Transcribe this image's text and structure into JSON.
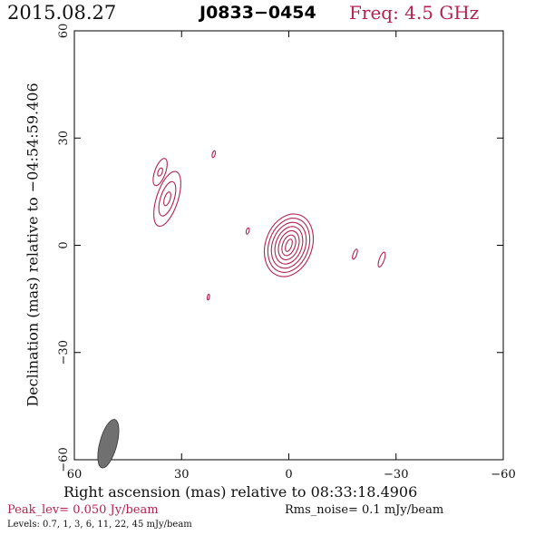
{
  "header": {
    "date": "2015.08.27",
    "source": "J0833−0454",
    "frequency": "Freq: 4.5 GHz"
  },
  "footer": {
    "peak": "Peak_lev=  0.050 Jy/beam",
    "rms": "Rms_noise=  0.1 mJy/beam",
    "levels": "Levels: 0.7,   1,   3,   6,   11,   22,   45 mJy/beam"
  },
  "colors": {
    "contour": "#b4234f",
    "beam": "#707070",
    "axes": "#000000"
  },
  "chart_data": {
    "type": "contour",
    "xlabel": "Right ascension (mas) relative to 08:33:18.4906",
    "ylabel": "Declination (mas) relative to −04:54:59.406",
    "xlim": [
      60,
      -60
    ],
    "ylim": [
      -60,
      60
    ],
    "xticks": [
      60,
      30,
      0,
      -30,
      -60
    ],
    "yticks": [
      -60,
      -30,
      0,
      30,
      60
    ],
    "xtick_labels": [
      "60",
      "30",
      "0",
      "−30",
      "−60"
    ],
    "ytick_labels": [
      "−60",
      "−30",
      "0",
      "30",
      "60"
    ],
    "grid": false,
    "contour_levels_mJy": [
      0.7,
      1,
      3,
      6,
      11,
      22,
      45
    ],
    "beam": {
      "x": 50.5,
      "y": -55.5,
      "major": 7,
      "minor": 2.4,
      "pa_deg": 15
    },
    "components": [
      {
        "name": "core",
        "x": 0,
        "y": 0,
        "rx_min": 0.8,
        "ry_min": 1.8,
        "rx_max": 6.5,
        "ry_max": 9,
        "rotation": 20,
        "levels": 7
      },
      {
        "name": "north-east-knot-a",
        "x": 34,
        "y": 13,
        "rx_min": 0.8,
        "ry_min": 2,
        "rx_max": 3,
        "ry_max": 8,
        "rotation": 18,
        "levels": 3
      },
      {
        "name": "north-east-knot-b",
        "x": 36,
        "y": 20.5,
        "rx_min": 0.6,
        "ry_min": 1.2,
        "rx_max": 1.5,
        "ry_max": 4,
        "rotation": 20,
        "levels": 2
      },
      {
        "name": "blob-1",
        "x": 21,
        "y": 25.5,
        "rx_min": 0.4,
        "ry_min": 1,
        "rx_max": 0.4,
        "ry_max": 1,
        "rotation": 15,
        "levels": 1
      },
      {
        "name": "blob-2",
        "x": 11.5,
        "y": 4,
        "rx_min": 0.4,
        "ry_min": 0.9,
        "rx_max": 0.4,
        "ry_max": 0.9,
        "rotation": 15,
        "levels": 1
      },
      {
        "name": "blob-3",
        "x": 22.5,
        "y": -14.5,
        "rx_min": 0.3,
        "ry_min": 0.8,
        "rx_max": 0.3,
        "ry_max": 0.8,
        "rotation": 10,
        "levels": 1
      },
      {
        "name": "blob-4",
        "x": -18.5,
        "y": -2.5,
        "rx_min": 0.5,
        "ry_min": 1.5,
        "rx_max": 0.5,
        "ry_max": 1.5,
        "rotation": 20,
        "levels": 1
      },
      {
        "name": "blob-5",
        "x": -26,
        "y": -4,
        "rx_min": 0.7,
        "ry_min": 2.2,
        "rx_max": 0.7,
        "ry_max": 2.2,
        "rotation": 20,
        "levels": 1
      }
    ]
  }
}
